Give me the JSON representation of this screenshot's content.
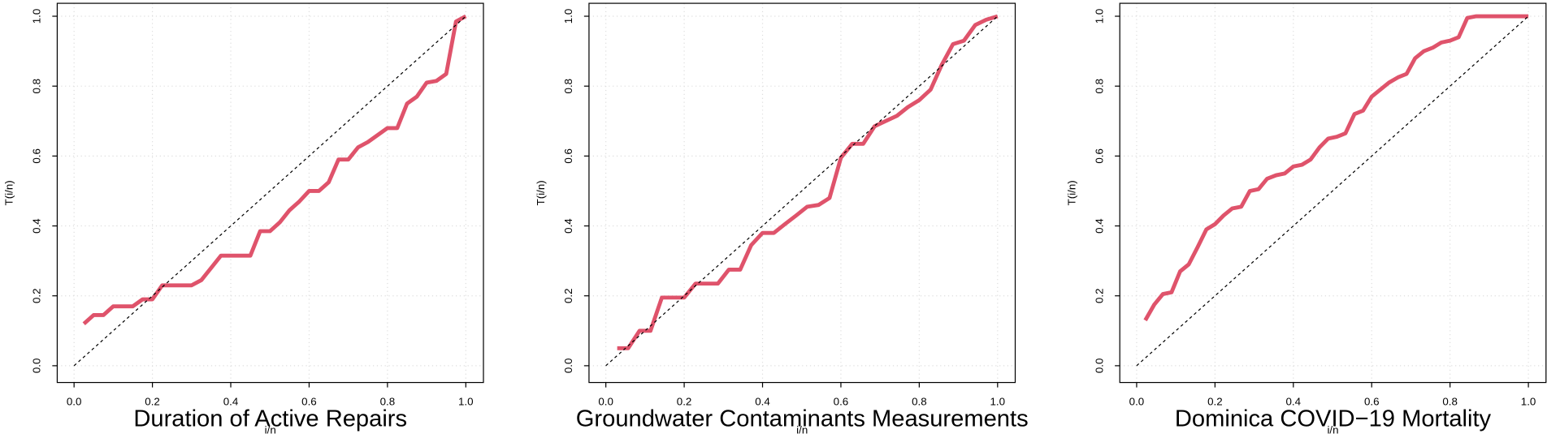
{
  "chart_data": [
    {
      "type": "line",
      "title": "Duration of Active Repairs",
      "x_label": "i/n",
      "y_label": "T(i/n)",
      "xlim": [
        -0.043,
        1.045
      ],
      "ylim": [
        -0.048,
        1.037
      ],
      "grid": true,
      "xticks": [
        {
          "value": 0,
          "label": "0.0"
        },
        0.2,
        0.4,
        0.6,
        0.8,
        {
          "value": 1,
          "label": "1.0"
        }
      ],
      "yticks": [
        {
          "value": 0,
          "label": "0.0"
        },
        0.2,
        0.4,
        0.6,
        0.8,
        {
          "value": 1,
          "label": "1.0"
        }
      ],
      "series": [
        {
          "color": "#df536b",
          "x": [
            0.025,
            0.05,
            0.075,
            0.1,
            0.125,
            0.15,
            0.175,
            0.2,
            0.225,
            0.25,
            0.275,
            0.3,
            0.325,
            0.35,
            0.375,
            0.4,
            0.425,
            0.45,
            0.475,
            0.5,
            0.525,
            0.55,
            0.575,
            0.6,
            0.625,
            0.65,
            0.675,
            0.7,
            0.725,
            0.75,
            0.775,
            0.8,
            0.825,
            0.85,
            0.875,
            0.9,
            0.925,
            0.95,
            0.975,
            1
          ],
          "values": [
            0.12,
            0.145,
            0.145,
            0.17,
            0.17,
            0.17,
            0.19,
            0.19,
            0.23,
            0.23,
            0.23,
            0.23,
            0.245,
            0.28,
            0.315,
            0.315,
            0.315,
            0.315,
            0.385,
            0.385,
            0.41,
            0.445,
            0.47,
            0.5,
            0.5,
            0.525,
            0.59,
            0.59,
            0.625,
            0.64,
            0.66,
            0.68,
            0.68,
            0.75,
            0.77,
            0.81,
            0.815,
            0.835,
            0.985,
            1
          ]
        },
        {
          "color": "#000000",
          "dash": true,
          "x": [
            0,
            1
          ],
          "values": [
            0,
            1
          ]
        }
      ]
    },
    {
      "type": "line",
      "title": "Groundwater Contaminants Measurements",
      "x_label": "i/n",
      "y_label": "T(i/n)",
      "xlim": [
        -0.043,
        1.045
      ],
      "ylim": [
        -0.048,
        1.037
      ],
      "grid": true,
      "xticks": [
        {
          "value": 0,
          "label": "0.0"
        },
        0.2,
        0.4,
        0.6,
        0.8,
        {
          "value": 1,
          "label": "1.0"
        }
      ],
      "yticks": [
        {
          "value": 0,
          "label": "0.0"
        },
        0.2,
        0.4,
        0.6,
        0.8,
        {
          "value": 1,
          "label": "1.0"
        }
      ],
      "series": [
        {
          "color": "#df536b",
          "x": [
            0.029,
            0.057,
            0.086,
            0.114,
            0.143,
            0.171,
            0.2,
            0.229,
            0.257,
            0.286,
            0.314,
            0.343,
            0.371,
            0.4,
            0.429,
            0.457,
            0.486,
            0.514,
            0.543,
            0.571,
            0.6,
            0.629,
            0.657,
            0.686,
            0.714,
            0.743,
            0.771,
            0.8,
            0.829,
            0.857,
            0.886,
            0.914,
            0.943,
            0.971,
            1
          ],
          "values": [
            0.05,
            0.05,
            0.1,
            0.1,
            0.195,
            0.195,
            0.195,
            0.235,
            0.235,
            0.235,
            0.275,
            0.275,
            0.345,
            0.38,
            0.38,
            0.405,
            0.43,
            0.455,
            0.46,
            0.48,
            0.595,
            0.635,
            0.635,
            0.685,
            0.7,
            0.715,
            0.74,
            0.76,
            0.79,
            0.86,
            0.92,
            0.93,
            0.975,
            0.99,
            1
          ]
        },
        {
          "color": "#000000",
          "dash": true,
          "x": [
            0,
            1
          ],
          "values": [
            0,
            1
          ]
        }
      ]
    },
    {
      "type": "line",
      "title": "Dominica COVID−19 Mortality",
      "x_label": "i/n",
      "y_label": "T(i/n)",
      "xlim": [
        -0.043,
        1.045
      ],
      "ylim": [
        -0.048,
        1.037
      ],
      "grid": true,
      "xticks": [
        {
          "value": 0,
          "label": "0.0"
        },
        0.2,
        0.4,
        0.6,
        0.8,
        {
          "value": 1,
          "label": "1.0"
        }
      ],
      "yticks": [
        {
          "value": 0,
          "label": "0.0"
        },
        0.2,
        0.4,
        0.6,
        0.8,
        {
          "value": 1,
          "label": "1.0"
        }
      ],
      "series": [
        {
          "color": "#df536b",
          "x": [
            0.022,
            0.045,
            0.067,
            0.089,
            0.111,
            0.133,
            0.156,
            0.178,
            0.2,
            0.222,
            0.244,
            0.267,
            0.289,
            0.311,
            0.333,
            0.356,
            0.378,
            0.4,
            0.422,
            0.444,
            0.467,
            0.489,
            0.511,
            0.533,
            0.556,
            0.578,
            0.6,
            0.622,
            0.644,
            0.667,
            0.689,
            0.711,
            0.733,
            0.756,
            0.778,
            0.8,
            0.822,
            0.844,
            0.867,
            0.889,
            0.911,
            0.933,
            0.956,
            0.978,
            1
          ],
          "values": [
            0.13,
            0.175,
            0.205,
            0.21,
            0.27,
            0.29,
            0.34,
            0.39,
            0.405,
            0.43,
            0.45,
            0.455,
            0.5,
            0.505,
            0.535,
            0.545,
            0.55,
            0.57,
            0.575,
            0.59,
            0.625,
            0.65,
            0.655,
            0.665,
            0.72,
            0.73,
            0.77,
            0.79,
            0.81,
            0.825,
            0.835,
            0.88,
            0.9,
            0.91,
            0.925,
            0.93,
            0.94,
            0.995,
            1,
            1,
            1,
            1,
            1,
            1,
            1
          ]
        },
        {
          "color": "#000000",
          "dash": true,
          "x": [
            0,
            1
          ],
          "values": [
            0,
            1
          ]
        }
      ]
    }
  ]
}
